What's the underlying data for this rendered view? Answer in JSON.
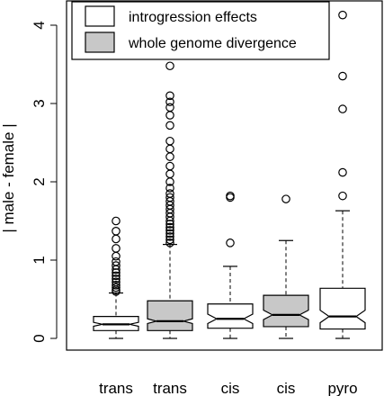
{
  "chart_data": {
    "type": "box",
    "ylabel": "| male - female |",
    "ylim": [
      0,
      4.2
    ],
    "yticks": [
      0,
      1,
      2,
      3,
      4
    ],
    "legend": {
      "position": "top-left",
      "entries": [
        {
          "label": "introgression effects",
          "fill": "#ffffff"
        },
        {
          "label": "whole genome divergence",
          "fill": "#c8c8c8"
        }
      ]
    },
    "boxes": [
      {
        "label": "trans",
        "fill": "#ffffff",
        "whisker_low": 0.0,
        "q1": 0.1,
        "median": 0.18,
        "q3": 0.28,
        "whisker_high": 0.58,
        "notch_low": 0.155,
        "notch_high": 0.205,
        "outliers": [
          0.6,
          0.62,
          0.65,
          0.68,
          0.72,
          0.76,
          0.8,
          0.84,
          0.88,
          0.93,
          0.98,
          1.05,
          1.15,
          1.27,
          1.37,
          1.5
        ]
      },
      {
        "label": "trans",
        "fill": "#c8c8c8",
        "whisker_low": 0.0,
        "q1": 0.1,
        "median": 0.22,
        "q3": 0.48,
        "whisker_high": 1.2,
        "notch_low": 0.19,
        "notch_high": 0.25,
        "outliers": [
          1.22,
          1.26,
          1.3,
          1.34,
          1.38,
          1.42,
          1.46,
          1.5,
          1.55,
          1.6,
          1.65,
          1.7,
          1.75,
          1.8,
          1.85,
          1.92,
          2.0,
          2.1,
          2.2,
          2.32,
          2.42,
          2.52,
          2.72,
          2.85,
          2.95,
          3.02,
          3.1,
          3.48
        ]
      },
      {
        "label": "cis",
        "fill": "#ffffff",
        "whisker_low": 0.0,
        "q1": 0.13,
        "median": 0.25,
        "q3": 0.44,
        "whisker_high": 0.92,
        "notch_low": 0.19,
        "notch_high": 0.31,
        "outliers": [
          1.22,
          1.8,
          1.82
        ]
      },
      {
        "label": "cis",
        "fill": "#c8c8c8",
        "whisker_low": 0.0,
        "q1": 0.15,
        "median": 0.3,
        "q3": 0.55,
        "whisker_high": 1.25,
        "notch_low": 0.24,
        "notch_high": 0.36,
        "outliers": [
          1.78
        ]
      },
      {
        "label": "pyro",
        "fill": "#ffffff",
        "whisker_low": 0.0,
        "q1": 0.12,
        "median": 0.28,
        "q3": 0.64,
        "whisker_high": 1.63,
        "notch_low": 0.2,
        "notch_high": 0.36,
        "outliers": [
          1.82,
          2.12,
          2.93,
          3.35,
          4.13
        ]
      }
    ]
  }
}
